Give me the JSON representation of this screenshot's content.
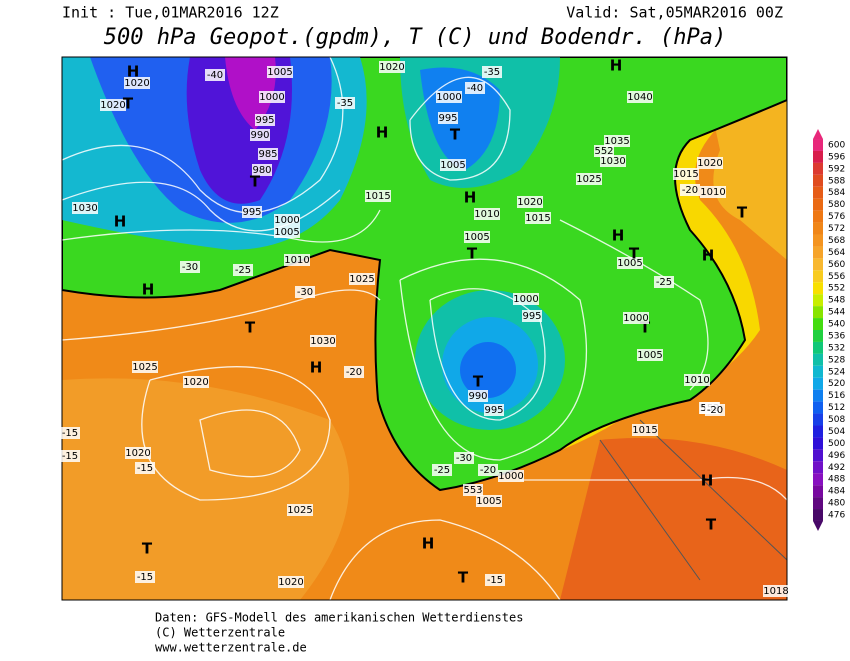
{
  "header": {
    "init": "Init : Tue,01MAR2016  12Z",
    "valid": "Valid: Sat,05MAR2016 00Z",
    "title": "500 hPa Geopot.(gpdm), T (C) und Bodendr. (hPa)"
  },
  "map_labels": [
    "H",
    "1020",
    "1020",
    "T",
    "1005",
    "1000",
    "995",
    "990",
    "985",
    "980",
    "T",
    "995",
    "1000",
    "1005",
    "1010",
    "H",
    "1030",
    "H",
    "-40",
    "-35",
    "-30",
    "-25",
    "1020",
    "H",
    "T",
    "1000",
    "995",
    "1005",
    "-40",
    "-35",
    "1015",
    "H",
    "1010",
    "1005",
    "T",
    "1020",
    "1015",
    "H",
    "1040",
    "1035",
    "1030",
    "1025",
    "1020",
    "1015",
    "1010",
    "T",
    "1005",
    "H",
    "T",
    "-25",
    "T",
    "1000",
    "1005",
    "1010",
    "552",
    "-20",
    "-30",
    "1025",
    "T",
    "1030",
    "H",
    "-20",
    "1025",
    "1020",
    "-15",
    "-15",
    "1020",
    "-15",
    "1025",
    "T",
    "-15",
    "1020",
    "H",
    "T",
    "-15",
    "1000",
    "995",
    "990",
    "T",
    "995",
    "1000",
    "1005",
    "-30",
    "-25",
    "-20",
    "1015",
    "H",
    "T",
    "552",
    "553",
    "552",
    "H",
    "-20",
    "1018"
  ],
  "colorbar": {
    "ticks": [
      600,
      596,
      592,
      588,
      584,
      580,
      576,
      572,
      568,
      564,
      560,
      556,
      552,
      548,
      544,
      540,
      536,
      532,
      528,
      524,
      520,
      516,
      512,
      508,
      504,
      500,
      496,
      492,
      488,
      484,
      480,
      476
    ],
    "colors": [
      "#e8287a",
      "#d81e4c",
      "#dc3a30",
      "#e04c20",
      "#e65c18",
      "#ea6a14",
      "#ee7814",
      "#f08618",
      "#f49420",
      "#f6a42a",
      "#f8b830",
      "#f8cc20",
      "#f8e000",
      "#c8ee00",
      "#88e400",
      "#44dc10",
      "#20d040",
      "#10c878",
      "#10c0a8",
      "#10b8d0",
      "#10a8e8",
      "#1080f0",
      "#1060f0",
      "#1840e8",
      "#2020e0",
      "#3010d8",
      "#5010d0",
      "#7010c8",
      "#8810c0",
      "#7808a0",
      "#600880",
      "#480868"
    ]
  },
  "footer": {
    "line1": "Daten: GFS-Modell des amerikanischen Wetterdienstes",
    "line2": "(C) Wetterzentrale",
    "line3": "www.wetterzentrale.de"
  }
}
